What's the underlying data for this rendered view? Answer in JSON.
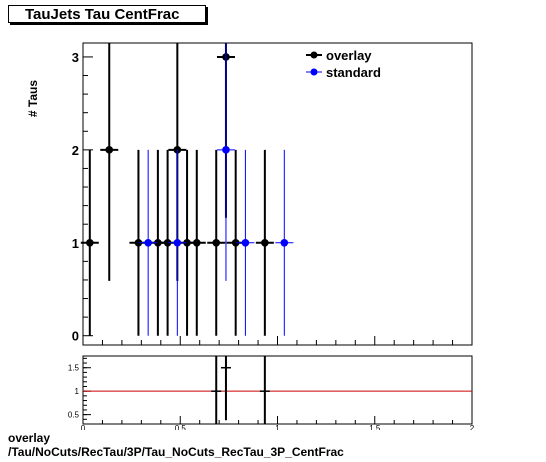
{
  "title": "TauJets Tau CentFrac",
  "footer": {
    "line1": "overlay",
    "line2": "/Tau/NoCuts/RecTau/3P/Tau_NoCuts_RecTau_3P_CentFrac"
  },
  "colors": {
    "overlay": "#000000",
    "standard": "#0000ff",
    "ratio_line": "#cc0000"
  },
  "chart_data": [
    {
      "type": "scatter",
      "title": "TauJets Tau CentFrac",
      "ylabel": "# Taus",
      "xlim": [
        0,
        2
      ],
      "ylim": [
        -0.1,
        3.15
      ],
      "yticks": [
        0,
        1,
        2,
        3
      ],
      "legend_position": "top-right",
      "series": [
        {
          "name": "overlay",
          "color": "#000000",
          "points": [
            {
              "x": 0.035,
              "y": 1,
              "err": 1
            },
            {
              "x": 0.135,
              "y": 2,
              "err": 1.41
            },
            {
              "x": 0.285,
              "y": 1,
              "err": 1
            },
            {
              "x": 0.385,
              "y": 1,
              "err": 1
            },
            {
              "x": 0.435,
              "y": 1,
              "err": 1
            },
            {
              "x": 0.485,
              "y": 2,
              "err": 1.41
            },
            {
              "x": 0.535,
              "y": 1,
              "err": 1
            },
            {
              "x": 0.585,
              "y": 1,
              "err": 1
            },
            {
              "x": 0.685,
              "y": 1,
              "err": 1
            },
            {
              "x": 0.735,
              "y": 3,
              "err": 1.73
            },
            {
              "x": 0.785,
              "y": 1,
              "err": 1
            },
            {
              "x": 0.935,
              "y": 1,
              "err": 1
            }
          ]
        },
        {
          "name": "standard",
          "color": "#0000ff",
          "points": [
            {
              "x": 0.335,
              "y": 1,
              "err": 1
            },
            {
              "x": 0.485,
              "y": 1,
              "err": 1
            },
            {
              "x": 0.735,
              "y": 2,
              "err": 1.41
            },
            {
              "x": 0.835,
              "y": 1,
              "err": 1
            },
            {
              "x": 1.035,
              "y": 1,
              "err": 1
            }
          ]
        }
      ]
    },
    {
      "type": "scatter",
      "xlim": [
        0,
        2
      ],
      "ylim": [
        0.3,
        1.75
      ],
      "yticks": [
        0.5,
        1,
        1.5
      ],
      "xticks": [
        0,
        0.5,
        1,
        1.5,
        2
      ],
      "reference_line": 1,
      "points": [
        {
          "x": 0.685,
          "y": 1,
          "err": 1.41
        },
        {
          "x": 0.735,
          "y": 1.5,
          "err": 1.12
        },
        {
          "x": 0.935,
          "y": 1,
          "err": 1.41
        }
      ]
    }
  ]
}
